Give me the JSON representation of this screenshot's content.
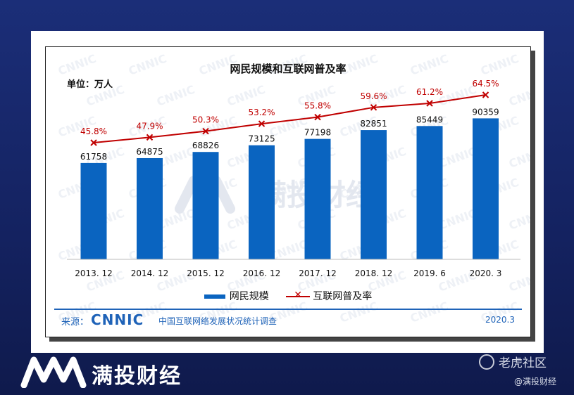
{
  "chart_data": {
    "type": "bar",
    "title": "网民规模和互联网普及率",
    "unit_label": "单位：万人",
    "categories": [
      "2013. 12",
      "2014. 12",
      "2015. 12",
      "2016. 12",
      "2017. 12",
      "2018. 12",
      "2019. 6",
      "2020. 3"
    ],
    "series": [
      {
        "name": "网民规模",
        "kind": "bar",
        "values": [
          61758,
          64875,
          68826,
          73125,
          77198,
          82851,
          85449,
          90359
        ]
      },
      {
        "name": "互联网普及率",
        "kind": "line",
        "values": [
          45.8,
          47.9,
          50.3,
          53.2,
          55.8,
          59.6,
          61.2,
          64.5
        ],
        "labels": [
          "45.8%",
          "47.9%",
          "50.3%",
          "53.2%",
          "55.8%",
          "59.6%",
          "61.2%",
          "64.5%"
        ]
      }
    ],
    "colors": {
      "bar": "#0a64c0",
      "line": "#c00000"
    },
    "legend_position": "bottom",
    "grid": false
  },
  "footer": {
    "source_label": "来源：",
    "source_logo": "CNNIC",
    "source_text": "中国互联网络发展状况统计调查",
    "date": "2020.3"
  },
  "watermark": {
    "text": "CNNIC",
    "brand": "满投财经"
  },
  "branding": {
    "name": "满投财经",
    "platform": "老虎社区",
    "handle": "@满投财经"
  }
}
